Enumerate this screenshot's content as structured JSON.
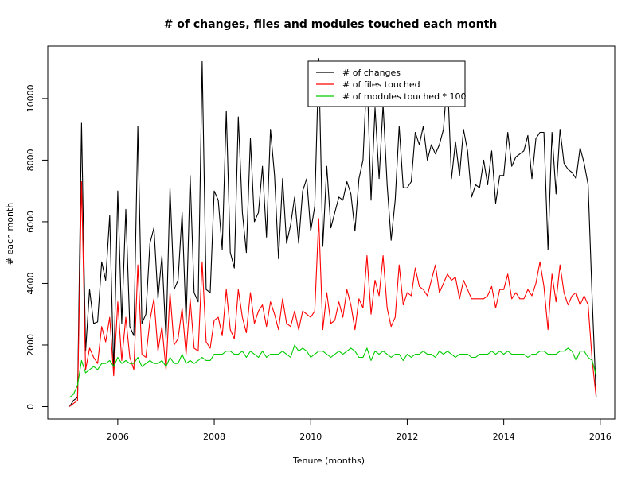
{
  "chart_data": {
    "type": "line",
    "title": "# of changes, files and modules touched each month",
    "xlabel": "Tenure (months)",
    "ylabel": "# each month",
    "x_start": 2005.0,
    "x_step": 0.08333,
    "xlim": [
      2004.55,
      2016.3
    ],
    "ylim": [
      -400,
      11700
    ],
    "x_ticks": [
      2006,
      2008,
      2010,
      2012,
      2014,
      2016
    ],
    "y_ticks": [
      0,
      2000,
      4000,
      6000,
      8000,
      10000
    ],
    "x_tick_labels": [
      "2006",
      "2008",
      "2010",
      "2012",
      "2014",
      "2016"
    ],
    "y_tick_labels": [
      "0",
      "2000",
      "4000",
      "6000",
      "8000",
      "10000"
    ],
    "legend": {
      "position": "top-center"
    },
    "series": [
      {
        "name": "# of changes",
        "color": "#000000",
        "values": [
          0,
          200,
          300,
          9200,
          1800,
          3800,
          2700,
          2750,
          4700,
          4100,
          6200,
          1100,
          7000,
          2700,
          6400,
          2600,
          2300,
          9100,
          2700,
          3000,
          5300,
          5800,
          3500,
          4900,
          2200,
          7100,
          3800,
          4100,
          6300,
          2700,
          7500,
          3700,
          3400,
          11200,
          3800,
          3700,
          7000,
          6700,
          5100,
          9600,
          5000,
          4500,
          9400,
          6300,
          5000,
          8700,
          6000,
          6300,
          7800,
          5500,
          9000,
          7500,
          4800,
          7400,
          5300,
          5900,
          6800,
          5300,
          7000,
          7400,
          5700,
          6500,
          11300,
          5200,
          7800,
          5800,
          6300,
          6800,
          6700,
          7300,
          6900,
          5700,
          7400,
          8000,
          10900,
          6700,
          9700,
          7400,
          9800,
          7200,
          5400,
          6700,
          9100,
          7100,
          7100,
          7300,
          8900,
          8500,
          9100,
          8000,
          8500,
          8200,
          8500,
          9000,
          10700,
          7400,
          8600,
          7500,
          9000,
          8300,
          6800,
          7200,
          7100,
          8000,
          7200,
          8300,
          6600,
          7500,
          7500,
          8900,
          7800,
          8100,
          8200,
          8300,
          8800,
          7400,
          8700,
          8900,
          8900,
          5100,
          8900,
          6900,
          9000,
          7900,
          7700,
          7600,
          7400,
          8400,
          7900,
          7200,
          3500,
          300
        ],
        "width": 1.1
      },
      {
        "name": "# of files touched",
        "color": "#ff0000",
        "values": [
          0,
          100,
          200,
          7300,
          1200,
          1900,
          1600,
          1400,
          2600,
          2100,
          2900,
          1000,
          3400,
          1500,
          2900,
          1600,
          1200,
          4600,
          1700,
          1600,
          2800,
          3500,
          1800,
          2600,
          1200,
          3700,
          2000,
          2200,
          3200,
          1700,
          3500,
          1900,
          1800,
          4700,
          2100,
          1900,
          2800,
          2900,
          2300,
          3800,
          2500,
          2200,
          3800,
          2900,
          2400,
          3700,
          2700,
          3100,
          3300,
          2600,
          3400,
          3000,
          2500,
          3500,
          2700,
          2600,
          3100,
          2500,
          3100,
          3000,
          2900,
          3100,
          6100,
          2500,
          3700,
          2700,
          2800,
          3400,
          2900,
          3800,
          3300,
          2500,
          3500,
          3200,
          4900,
          3000,
          4100,
          3600,
          4900,
          3200,
          2600,
          2900,
          4600,
          3300,
          3700,
          3600,
          4500,
          3900,
          3800,
          3600,
          4100,
          4600,
          3700,
          4000,
          4300,
          4100,
          4200,
          3500,
          4100,
          3800,
          3500,
          3500,
          3500,
          3500,
          3600,
          3900,
          3200,
          3800,
          3800,
          4300,
          3500,
          3700,
          3500,
          3500,
          3800,
          3600,
          4000,
          4700,
          3900,
          2500,
          4300,
          3400,
          4600,
          3700,
          3300,
          3600,
          3700,
          3300,
          3600,
          3300,
          1500,
          300
        ],
        "width": 1.1
      },
      {
        "name": "# of modules touched * 100",
        "color": "#00cc00",
        "values": [
          300,
          400,
          700,
          1500,
          1100,
          1200,
          1300,
          1200,
          1400,
          1400,
          1500,
          1300,
          1600,
          1400,
          1500,
          1400,
          1400,
          1600,
          1300,
          1400,
          1500,
          1400,
          1400,
          1500,
          1300,
          1600,
          1400,
          1400,
          1700,
          1400,
          1500,
          1400,
          1500,
          1600,
          1500,
          1500,
          1700,
          1700,
          1700,
          1800,
          1800,
          1700,
          1700,
          1800,
          1600,
          1800,
          1700,
          1600,
          1800,
          1600,
          1700,
          1700,
          1700,
          1800,
          1700,
          1600,
          2000,
          1800,
          1900,
          1800,
          1600,
          1700,
          1800,
          1800,
          1700,
          1600,
          1700,
          1800,
          1700,
          1800,
          1900,
          1800,
          1600,
          1600,
          1900,
          1500,
          1800,
          1700,
          1800,
          1700,
          1600,
          1700,
          1700,
          1500,
          1700,
          1600,
          1700,
          1700,
          1800,
          1700,
          1700,
          1600,
          1800,
          1700,
          1800,
          1700,
          1600,
          1700,
          1700,
          1700,
          1600,
          1600,
          1700,
          1700,
          1700,
          1800,
          1700,
          1800,
          1700,
          1800,
          1700,
          1700,
          1700,
          1700,
          1600,
          1700,
          1700,
          1800,
          1800,
          1700,
          1700,
          1700,
          1800,
          1800,
          1900,
          1800,
          1500,
          1800,
          1800,
          1600,
          1500,
          1000
        ],
        "width": 1.1
      }
    ]
  }
}
